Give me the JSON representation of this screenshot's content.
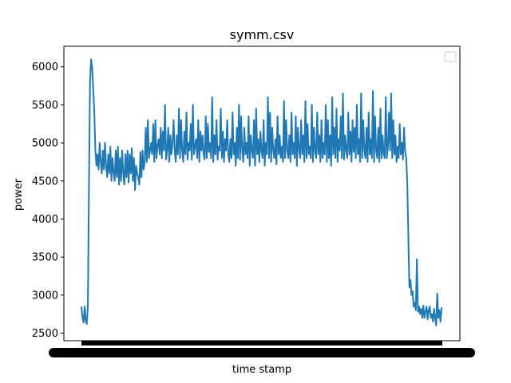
{
  "chart_data": {
    "type": "line",
    "title": "symm.csv",
    "xlabel": "time stamp",
    "ylabel": "power",
    "ylim": [
      2400,
      6270
    ],
    "yticks": [
      2500,
      3000,
      3500,
      4000,
      4500,
      5000,
      5500,
      6000
    ],
    "ytick_labels": [
      "2500",
      "3000",
      "3500",
      "4000",
      "4500",
      "5000",
      "5500",
      "6000"
    ],
    "x_tick_labels_note": "dense overlapping timestamp labels rendered as a solid black band",
    "legend": "top-right",
    "grid": false,
    "series": [
      {
        "color": "#1f77b4",
        "values": [
          2840,
          2700,
          2640,
          2850,
          2660,
          2620,
          2860,
          4400,
          5800,
          6100,
          6000,
          5700,
          5400,
          4900,
          4700,
          4850,
          4650,
          5000,
          4750,
          4600,
          4900,
          4650,
          5000,
          4700,
          4550,
          4850,
          4600,
          4950,
          4500,
          4800,
          4620,
          4500,
          4900,
          4550,
          4950,
          4450,
          4800,
          4500,
          4900,
          4600,
          4450,
          4850,
          4550,
          4900,
          4480,
          4850,
          4600,
          4930,
          4500,
          4800,
          4380,
          4700,
          4600,
          4550,
          4450,
          4880,
          4550,
          4900,
          4650,
          4750,
          5200,
          4750,
          5300,
          4800,
          4900,
          5000,
          4850,
          5250,
          4750,
          5300,
          4800,
          4950,
          5050,
          4850,
          5200,
          4800,
          5150,
          4900,
          5500,
          4780,
          4900,
          5200,
          4750,
          5100,
          4850,
          5000,
          5300,
          4900,
          4750,
          5100,
          4850,
          5450,
          4800,
          5300,
          4900,
          4750,
          5150,
          4850,
          5400,
          4780,
          5000,
          4900,
          5250,
          4780,
          5500,
          4850,
          4950,
          5050,
          4800,
          5300,
          4750,
          5150,
          4900,
          5100,
          4850,
          4780,
          5350,
          4800,
          5250,
          4880,
          5000,
          4800,
          5600,
          4750,
          5100,
          4850,
          5300,
          4780,
          4950,
          4900,
          5450,
          4800,
          5150,
          4750,
          5050,
          4900,
          5300,
          4850,
          4750,
          5050,
          4800,
          5400,
          4850,
          5000,
          4700,
          5200,
          4800,
          5500,
          4780,
          5350,
          4900,
          4750,
          5200,
          4850,
          5000,
          4800,
          5350,
          4700,
          5100,
          4900,
          4800,
          5300,
          4700,
          5450,
          4850,
          5050,
          4750,
          5150,
          4900,
          4800,
          5300,
          4700,
          5000,
          4850,
          5600,
          4800,
          5400,
          4750,
          5200,
          4900,
          4800,
          5050,
          4720,
          5350,
          4850,
          5100,
          4800,
          4950,
          4750,
          5550,
          4800,
          5300,
          4900,
          4800,
          5100,
          4750,
          5400,
          4850,
          5000,
          4800,
          5350,
          4700,
          5200,
          4900,
          4800,
          5300,
          4850,
          5100,
          4750,
          5550,
          4800,
          5250,
          4850,
          4950,
          4800,
          5500,
          4750,
          5200,
          4900,
          4800,
          5400,
          4850,
          5100,
          4750,
          5300,
          4800,
          5000,
          4850,
          5500,
          4750,
          5300,
          4800,
          5100,
          4700,
          5600,
          4850,
          5200,
          4800,
          5450,
          4750,
          5050,
          4900,
          5350,
          4800,
          5650,
          4780,
          5100,
          4900,
          4800,
          5400,
          4850,
          5150,
          4750,
          5300,
          4880,
          5200,
          4800,
          5500,
          4850,
          5050,
          4750,
          5650,
          4800,
          5300,
          4900,
          4800,
          5200,
          4750,
          5400,
          4850,
          5050,
          4800,
          5680,
          4750,
          5350,
          4900,
          4800,
          5200,
          4750,
          5450,
          4800,
          5100,
          4850,
          4800,
          5600,
          4800,
          4950,
          5400,
          4900,
          5650,
          4800,
          5300,
          4850,
          5100,
          4750,
          4950,
          4800,
          5250,
          4850,
          5000,
          4780,
          5200,
          4900,
          4800,
          4500,
          3800,
          3100,
          3200,
          3000,
          3050,
          2850,
          2900,
          2800,
          3470,
          2780,
          2850,
          2750,
          2820,
          2700,
          2860,
          2700,
          2780,
          2850,
          2680,
          2800,
          2850,
          2700,
          2750,
          2650,
          2820,
          2700,
          2600,
          3020,
          2700,
          2800,
          2650,
          2830
        ]
      }
    ]
  }
}
